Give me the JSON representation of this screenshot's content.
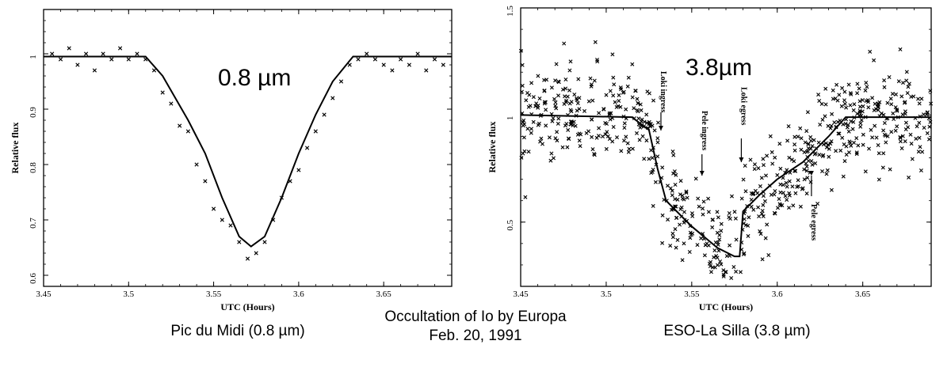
{
  "caption": {
    "left": "Pic du Midi (0.8 µm)",
    "center_line1": "Occultation of Io by Europa",
    "center_line2": "Feb. 20, 1991",
    "right": "ESO-La Silla (3.8 µm)"
  },
  "chart_data": [
    {
      "type": "scatter",
      "title": "0.8 µm",
      "xlabel": "UTC (Hours)",
      "ylabel": "Relative flux",
      "xlim": [
        3.45,
        3.69
      ],
      "ylim": [
        0.58,
        1.08
      ],
      "xticks": [
        "3.45",
        "3.5",
        "3.55",
        "3.6",
        "3.65"
      ],
      "yticks": [
        "0.6",
        "0.7",
        "0.8",
        "0.9",
        "1"
      ],
      "grid": false,
      "series": [
        {
          "type": "line",
          "x": [
            3.45,
            3.51,
            3.52,
            3.535,
            3.545,
            3.555,
            3.565,
            3.572,
            3.58,
            3.59,
            3.6,
            3.61,
            3.62,
            3.632,
            3.69
          ],
          "y": [
            0.995,
            0.995,
            0.96,
            0.88,
            0.82,
            0.74,
            0.67,
            0.652,
            0.67,
            0.74,
            0.82,
            0.89,
            0.95,
            0.995,
            0.995
          ]
        },
        {
          "type": "scatter",
          "marker": "x",
          "x": [
            3.455,
            3.46,
            3.465,
            3.47,
            3.475,
            3.48,
            3.485,
            3.49,
            3.495,
            3.5,
            3.505,
            3.51,
            3.515,
            3.52,
            3.525,
            3.53,
            3.535,
            3.54,
            3.545,
            3.55,
            3.555,
            3.56,
            3.565,
            3.57,
            3.575,
            3.58,
            3.585,
            3.59,
            3.595,
            3.6,
            3.605,
            3.61,
            3.615,
            3.62,
            3.625,
            3.63,
            3.635,
            3.64,
            3.645,
            3.65,
            3.655,
            3.66,
            3.665,
            3.67,
            3.675,
            3.68,
            3.685
          ],
          "y": [
            1.0,
            0.99,
            1.01,
            0.98,
            1.0,
            0.97,
            1.0,
            0.99,
            1.01,
            0.99,
            1.0,
            0.99,
            0.97,
            0.93,
            0.91,
            0.87,
            0.86,
            0.8,
            0.77,
            0.72,
            0.7,
            0.69,
            0.66,
            0.63,
            0.64,
            0.66,
            0.7,
            0.74,
            0.77,
            0.79,
            0.83,
            0.86,
            0.89,
            0.92,
            0.95,
            0.98,
            0.99,
            1.0,
            0.99,
            0.98,
            0.97,
            0.99,
            0.98,
            1.0,
            0.97,
            0.99,
            0.98
          ]
        }
      ]
    },
    {
      "type": "scatter",
      "title": "3.8µm",
      "xlabel": "UTC (Hours)",
      "ylabel": "Relative flux",
      "xlim": [
        3.45,
        3.69
      ],
      "ylim": [
        0.2,
        1.5
      ],
      "xticks": [
        "3.45",
        "3.5",
        "3.55",
        "3.6",
        "3.65"
      ],
      "yticks": [
        "0.5",
        "1",
        "1.5"
      ],
      "grid": false,
      "annotations": [
        {
          "text": "Loki ingress",
          "x": 3.532
        },
        {
          "text": "Pele ingress",
          "x": 3.556
        },
        {
          "text": "Loki egress",
          "x": 3.579
        },
        {
          "text": "Pele egress",
          "x": 3.62
        }
      ],
      "series": [
        {
          "type": "line",
          "x": [
            3.45,
            3.515,
            3.525,
            3.53,
            3.535,
            3.55,
            3.565,
            3.575,
            3.578,
            3.58,
            3.59,
            3.6,
            3.615,
            3.63,
            3.64,
            3.69
          ],
          "y": [
            1.0,
            0.99,
            0.93,
            0.75,
            0.6,
            0.48,
            0.38,
            0.34,
            0.34,
            0.55,
            0.63,
            0.7,
            0.78,
            0.9,
            0.99,
            0.99
          ]
        },
        {
          "type": "scatter",
          "marker": "x",
          "note": "dense noisy photometry points, about 700 samples, spread +/-0.2 around model"
        }
      ]
    }
  ]
}
